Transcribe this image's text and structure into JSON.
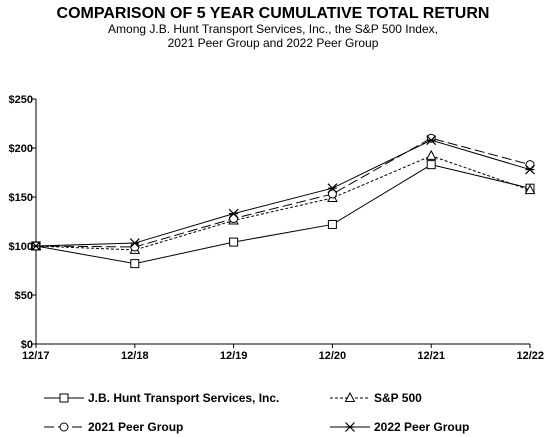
{
  "chart_data": {
    "type": "line",
    "title": "COMPARISON OF 5 YEAR CUMULATIVE TOTAL RETURN",
    "subtitle": [
      "Among J.B. Hunt Transport Services, Inc., the S&P 500 Index,",
      "2021 Peer Group and 2022 Peer Group"
    ],
    "categories": [
      "12/17",
      "12/18",
      "12/19",
      "12/20",
      "12/21",
      "12/22"
    ],
    "y_ticks": [
      "$0",
      "$50",
      "$100",
      "$150",
      "$200",
      "$250"
    ],
    "ylim": [
      0,
      250
    ],
    "legend_placement": "bottom",
    "series": [
      {
        "name": "J.B. Hunt Transport Services, Inc.",
        "marker": "square",
        "dash": "solid",
        "values": [
          100,
          82,
          104,
          122,
          183,
          159
        ]
      },
      {
        "name": "S&P 500",
        "marker": "triangle",
        "dash": "dotted",
        "values": [
          100,
          96,
          126,
          149,
          192,
          157
        ]
      },
      {
        "name": "2021 Peer Group",
        "marker": "circle",
        "dash": "dashed",
        "values": [
          100,
          99,
          128,
          153,
          210,
          183
        ]
      },
      {
        "name": "2022 Peer Group",
        "marker": "star",
        "dash": "solid",
        "values": [
          100,
          103,
          133,
          159,
          208,
          178
        ]
      }
    ]
  }
}
